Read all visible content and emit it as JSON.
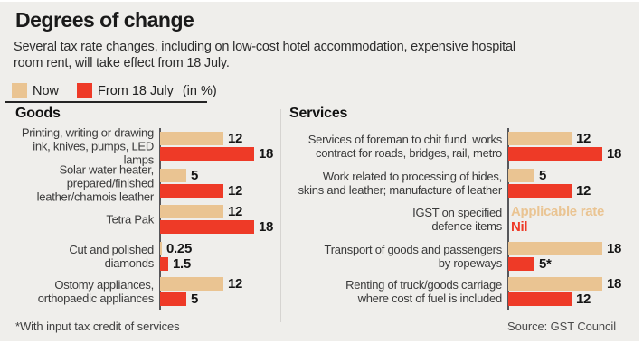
{
  "header": {
    "title": "Degrees of change",
    "subtitle": "Several tax rate changes, including on low-cost hotel accommodation, expensive hospital\nroom rent, will take effect from 18 July."
  },
  "legend": {
    "now": "Now",
    "from": "From 18 July",
    "unit": "(in %)"
  },
  "colors": {
    "now": "#eac492",
    "from": "#ee3a27",
    "panel_bg": "#efeeeb",
    "axis": "#57575a"
  },
  "footnote": "*With input tax credit of services",
  "source": "Source: GST Council",
  "chart_data": [
    {
      "type": "bar",
      "title": "Goods",
      "orientation": "horizontal",
      "unit": "%",
      "series_names": [
        "Now",
        "From 18 July"
      ],
      "xlim": [
        0,
        18
      ],
      "rows": [
        {
          "label": "Printing, writing or drawing ink, knives, pumps, LED lamps",
          "label_lines": [
            "Printing, writing or drawing",
            "ink, knives, pumps, LED",
            "lamps"
          ],
          "now": {
            "type": "bar",
            "value": 12,
            "display": "12"
          },
          "from": {
            "type": "bar",
            "value": 18,
            "display": "18"
          }
        },
        {
          "label": "Solar water heater, prepared/finished leather/chamois leather",
          "label_lines": [
            "Solar water heater,",
            "prepared/finished",
            "leather/chamois leather"
          ],
          "now": {
            "type": "bar",
            "value": 5,
            "display": "5"
          },
          "from": {
            "type": "bar",
            "value": 12,
            "display": "12"
          }
        },
        {
          "label": "Tetra Pak",
          "label_lines": [
            "Tetra Pak"
          ],
          "now": {
            "type": "bar",
            "value": 12,
            "display": "12"
          },
          "from": {
            "type": "bar",
            "value": 18,
            "display": "18"
          }
        },
        {
          "label": "Cut and polished diamonds",
          "label_lines": [
            "Cut and polished",
            "diamonds"
          ],
          "now": {
            "type": "bar",
            "value": 0.25,
            "display": "0.25"
          },
          "from": {
            "type": "bar",
            "value": 1.5,
            "display": "1.5"
          }
        },
        {
          "label": "Ostomy appliances, orthopaedic appliances",
          "label_lines": [
            "Ostomy appliances,",
            "orthopaedic appliances"
          ],
          "now": {
            "type": "bar",
            "value": 12,
            "display": "12"
          },
          "from": {
            "type": "bar",
            "value": 5,
            "display": "5"
          }
        }
      ]
    },
    {
      "type": "bar",
      "title": "Services",
      "orientation": "horizontal",
      "unit": "%",
      "series_names": [
        "Now",
        "From 18 July"
      ],
      "xlim": [
        0,
        18
      ],
      "rows": [
        {
          "label": "Services of foreman to chit fund, works contract for roads, bridges, rail, metro",
          "label_lines": [
            "Services of foreman to chit fund, works",
            "contract for roads, bridges, rail, metro"
          ],
          "now": {
            "type": "bar",
            "value": 12,
            "display": "12"
          },
          "from": {
            "type": "bar",
            "value": 18,
            "display": "18"
          }
        },
        {
          "label": "Work related to processing of hides, skins and leather; manufacture of leather",
          "label_lines": [
            "Work related to processing of hides,",
            "skins and leather; manufacture of leather"
          ],
          "now": {
            "type": "bar",
            "value": 5,
            "display": "5"
          },
          "from": {
            "type": "bar",
            "value": 12,
            "display": "12"
          }
        },
        {
          "label": "IGST on specified defence items",
          "label_lines": [
            "IGST on specified",
            "defence items"
          ],
          "now": {
            "type": "text",
            "display": "Applicable rate"
          },
          "from": {
            "type": "text",
            "display": "Nil"
          }
        },
        {
          "label": "Transport of goods and passengers by ropeways",
          "label_lines": [
            "Transport of goods and passengers",
            "by ropeways"
          ],
          "now": {
            "type": "bar",
            "value": 18,
            "display": "18"
          },
          "from": {
            "type": "bar",
            "value": 5,
            "display": "5*"
          }
        },
        {
          "label": "Renting of truck/goods carriage where cost of fuel is included",
          "label_lines": [
            "Renting of truck/goods carriage",
            "where cost of fuel is included"
          ],
          "now": {
            "type": "bar",
            "value": 18,
            "display": "18"
          },
          "from": {
            "type": "bar",
            "value": 12,
            "display": "12"
          }
        }
      ]
    }
  ]
}
